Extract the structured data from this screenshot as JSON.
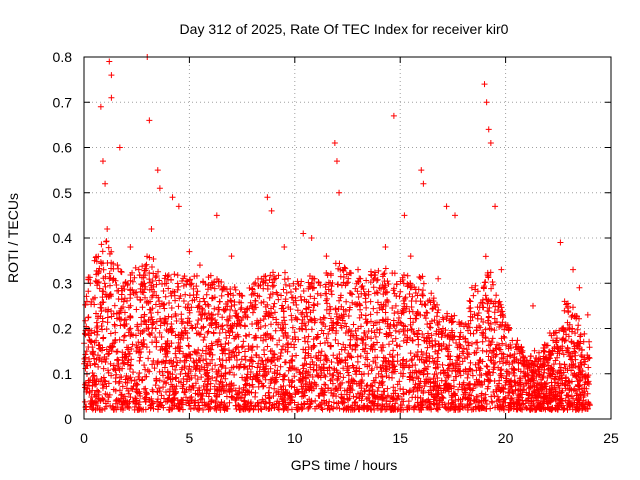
{
  "chart_data": {
    "type": "scatter",
    "title": "Day 312 of 2025, Rate Of TEC Index for receiver kir0",
    "xlabel": "GPS time / hours",
    "ylabel": "ROTI / TECUs",
    "xlim": [
      0,
      25
    ],
    "ylim": [
      0,
      0.8
    ],
    "xticks": [
      "0",
      "5",
      "10",
      "15",
      "20",
      "25"
    ],
    "yticks": [
      "0",
      "0.1",
      "0.2",
      "0.3",
      "0.4",
      "0.5",
      "0.6",
      "0.7",
      "0.8"
    ],
    "grid": true,
    "marker": "+",
    "color": "#ff0000",
    "series": [
      {
        "x": [
          0.8,
          0.9,
          1.0,
          1.2,
          1.3,
          1.3,
          1.7,
          3.0,
          3.1,
          3.5,
          3.6,
          4.2,
          4.5,
          6.3,
          8.7,
          8.9,
          10.4,
          11.9,
          12.0,
          12.1,
          14.7,
          15.2,
          16.0,
          16.1,
          17.2,
          17.6,
          19.0,
          19.1,
          19.2,
          19.3,
          19.5,
          22.6,
          23.2,
          23.5,
          0.3,
          0.5,
          1.1,
          2.2,
          2.6,
          3.2,
          5.0,
          5.5,
          7.0,
          9.5,
          10.8,
          11.5,
          13.0,
          13.8,
          14.3,
          15.5,
          16.8,
          18.4,
          19.8,
          21.3,
          22.1,
          22.8,
          23.9
        ],
        "y": [
          0.69,
          0.57,
          0.52,
          0.79,
          0.76,
          0.71,
          0.6,
          0.8,
          0.66,
          0.55,
          0.51,
          0.49,
          0.47,
          0.45,
          0.49,
          0.46,
          0.41,
          0.61,
          0.57,
          0.5,
          0.67,
          0.45,
          0.55,
          0.52,
          0.47,
          0.45,
          0.74,
          0.7,
          0.64,
          0.61,
          0.47,
          0.39,
          0.33,
          0.29,
          0.3,
          0.35,
          0.42,
          0.38,
          0.33,
          0.42,
          0.37,
          0.34,
          0.36,
          0.38,
          0.4,
          0.36,
          0.33,
          0.31,
          0.38,
          0.36,
          0.31,
          0.29,
          0.33,
          0.25,
          0.19,
          0.26,
          0.23
        ]
      }
    ],
    "density_profile": {
      "hours": [
        0,
        1,
        2,
        3,
        4,
        5,
        6,
        7,
        8,
        9,
        10,
        11,
        12,
        13,
        14,
        15,
        16,
        17,
        18,
        19,
        20,
        21,
        22,
        23,
        24
      ],
      "typical_upper": [
        0.3,
        0.38,
        0.3,
        0.35,
        0.3,
        0.3,
        0.3,
        0.27,
        0.28,
        0.32,
        0.29,
        0.3,
        0.33,
        0.29,
        0.32,
        0.3,
        0.3,
        0.22,
        0.2,
        0.35,
        0.2,
        0.12,
        0.15,
        0.25,
        0.15
      ]
    }
  }
}
